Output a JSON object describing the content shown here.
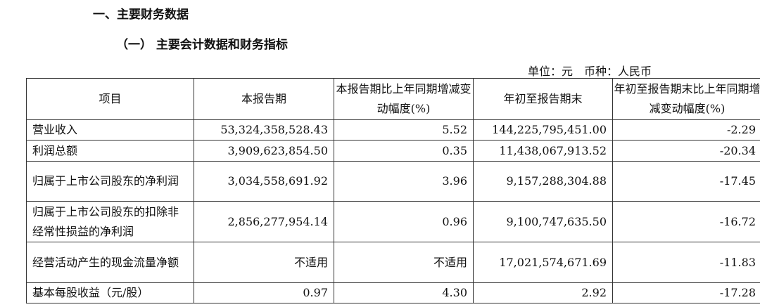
{
  "heading1": "一、主要财务数据",
  "heading2": "（一） 主要会计数据和财务指标",
  "unit": "单位：元　币种：人民币",
  "columns": [
    "项目",
    "本报告期",
    "本报告期比上年同期增减变动幅度(%)",
    "年初至报告期末",
    "年初至报告期末比上年同期增减变动幅度(%)"
  ],
  "rows": [
    [
      "营业收入",
      "53,324,358,528.43",
      "5.52",
      "144,225,795,451.00",
      "-2.29"
    ],
    [
      "利润总额",
      "3,909,623,854.50",
      "0.35",
      "11,438,067,913.52",
      "-20.34"
    ],
    [
      "归属于上市公司股东的净利润",
      "3,034,558,691.92",
      "3.96",
      "9,157,288,304.88",
      "-17.45"
    ],
    [
      "归属于上市公司股东的扣除非经常性损益的净利润",
      "2,856,277,954.14",
      "0.96",
      "9,100,747,635.50",
      "-16.72"
    ],
    [
      "经营活动产生的现金流量净额",
      "不适用",
      "不适用",
      "17,021,574,671.69",
      "-11.83"
    ],
    [
      "基本每股收益（元/股）",
      "0.97",
      "4.30",
      "2.92",
      "-17.28"
    ]
  ]
}
